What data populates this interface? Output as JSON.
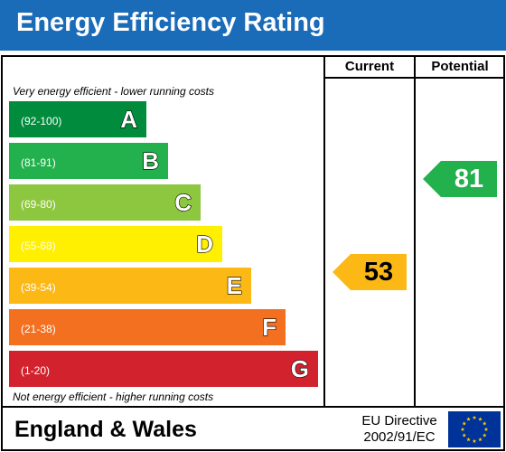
{
  "header": {
    "title": "Energy Efficiency Rating",
    "background": "#1a6bb8"
  },
  "columns": {
    "current": "Current",
    "potential": "Potential"
  },
  "captions": {
    "top": "Very energy efficient - lower running costs",
    "bottom": "Not energy efficient - higher running costs"
  },
  "bands": [
    {
      "range": "(92-100)",
      "letter": "A",
      "color": "#008c3c"
    },
    {
      "range": "(81-91)",
      "letter": "B",
      "color": "#23b14d"
    },
    {
      "range": "(69-80)",
      "letter": "C",
      "color": "#8dc63f"
    },
    {
      "range": "(55-68)",
      "letter": "D",
      "color": "#ffef00"
    },
    {
      "range": "(39-54)",
      "letter": "E",
      "color": "#fcb814"
    },
    {
      "range": "(21-38)",
      "letter": "F",
      "color": "#f37021"
    },
    {
      "range": "(1-20)",
      "letter": "G",
      "color": "#d2222d"
    }
  ],
  "current": {
    "value": "53",
    "band": "E",
    "color": "#fcb814"
  },
  "potential": {
    "value": "81",
    "band": "B",
    "color": "#23b14d"
  },
  "footer": {
    "region": "England & Wales",
    "directive_line1": "EU Directive",
    "directive_line2": "2002/91/EC",
    "flag_icon": "eu-flag-icon",
    "flag_color": "#003399",
    "star_color": "#ffcc00"
  }
}
